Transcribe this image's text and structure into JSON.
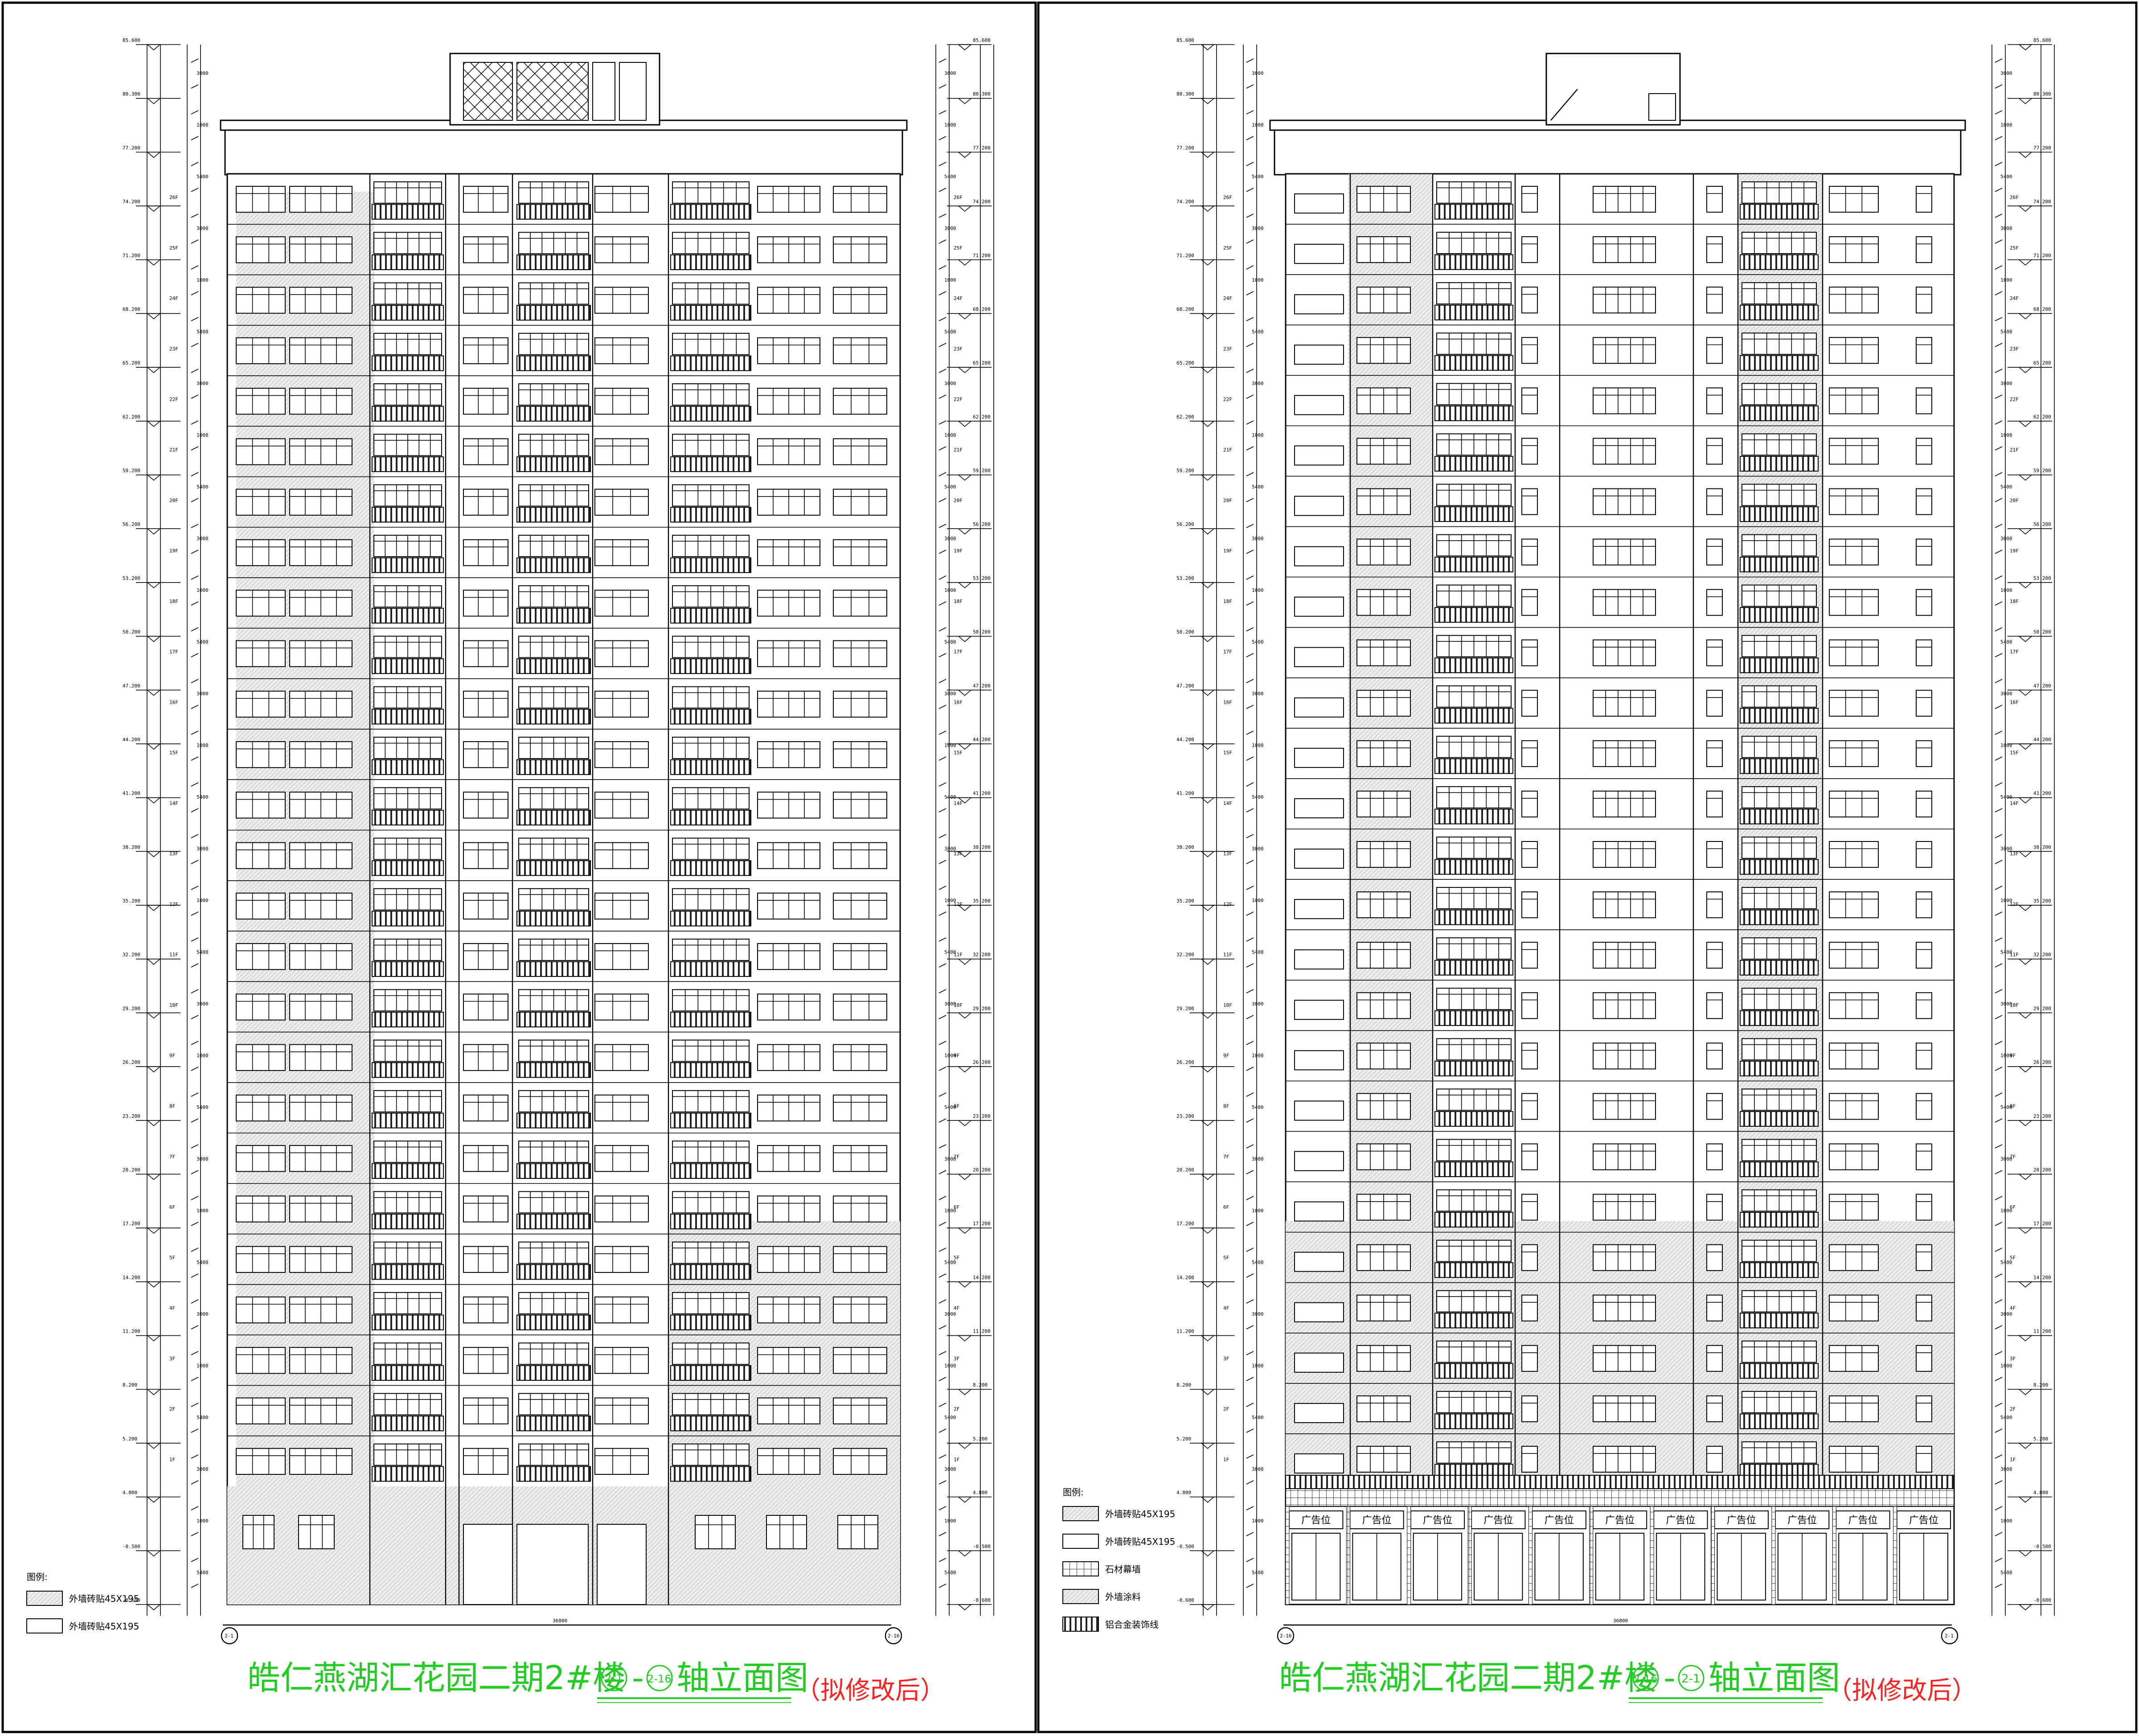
{
  "left_panel": {
    "title": "皓仁燕湖汇花园二期2#楼",
    "axis_from": "2-1",
    "axis_to": "2-16",
    "axis_suffix": "轴立面图",
    "note": "（拟修改后）",
    "legend_heading": "图例:",
    "legend": [
      {
        "label": "外墙砖贴45X195",
        "swatch": "hatch"
      },
      {
        "label": "外墙砖贴45X195",
        "swatch": "plain"
      }
    ],
    "total_width_label": "36800",
    "axis_left_label": "2-1",
    "axis_right_label": "2-16"
  },
  "right_panel": {
    "title": "皓仁燕湖汇花园二期2#楼",
    "axis_from": "2-16",
    "axis_to": "2-1",
    "axis_suffix": "轴立面图",
    "note": "（拟修改后）",
    "legend_heading": "图例:",
    "legend": [
      {
        "label": "外墙砖贴45X195",
        "swatch": "hatch"
      },
      {
        "label": "外墙砖贴45X195",
        "swatch": "plain"
      },
      {
        "label": "石材幕墙",
        "swatch": "grid"
      },
      {
        "label": "外墙涂料",
        "swatch": "hatch2"
      },
      {
        "label": "铝合金装饰线",
        "swatch": "dark"
      }
    ],
    "total_width_label": "36800",
    "axis_left_label": "2-16",
    "axis_right_label": "2-1",
    "shop_sign": "广告位",
    "shop_count": 11
  },
  "elevations": [
    "85.600",
    "80.300",
    "77.200",
    "74.200",
    "71.200",
    "68.200",
    "65.200",
    "62.200",
    "59.200",
    "56.200",
    "53.200",
    "50.200",
    "47.200",
    "44.200",
    "41.200",
    "38.200",
    "35.200",
    "32.200",
    "29.200",
    "26.200",
    "23.200",
    "20.200",
    "17.200",
    "14.200",
    "11.200",
    "8.200",
    "5.200",
    "4.800",
    "-0.500",
    "-0.600"
  ],
  "floor_tags": [
    "26F",
    "25F",
    "24F",
    "23F",
    "22F",
    "21F",
    "20F",
    "19F",
    "18F",
    "17F",
    "16F",
    "15F",
    "14F",
    "13F",
    "12F",
    "11F",
    "10F",
    "9F",
    "8F",
    "7F",
    "6F",
    "5F",
    "4F",
    "3F",
    "2F",
    "1F"
  ],
  "dim_labels": [
    "3000",
    "1200",
    "1000",
    "450",
    "5400",
    "100"
  ],
  "floors": 26
}
